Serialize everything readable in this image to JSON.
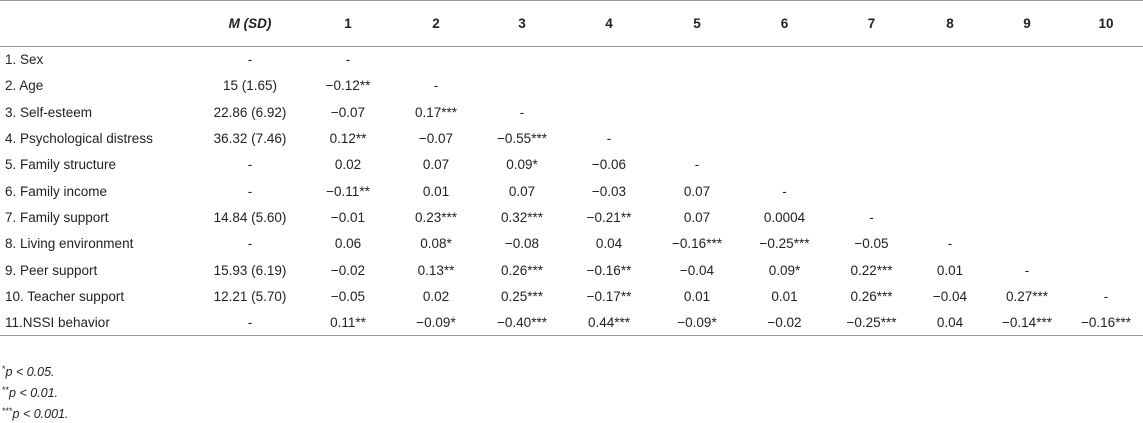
{
  "table": {
    "headers": [
      "",
      "M (SD)",
      "1",
      "2",
      "3",
      "4",
      "5",
      "6",
      "7",
      "8",
      "9",
      "10"
    ],
    "rows": [
      {
        "label": "1. Sex",
        "msd": "-",
        "cells": [
          "-",
          "",
          "",
          "",
          "",
          "",
          "",
          "",
          "",
          ""
        ]
      },
      {
        "label": "2. Age",
        "msd": "15 (1.65)",
        "cells": [
          "−0.12**",
          "-",
          "",
          "",
          "",
          "",
          "",
          "",
          "",
          ""
        ]
      },
      {
        "label": "3. Self-esteem",
        "msd": "22.86 (6.92)",
        "cells": [
          "−0.07",
          "0.17***",
          "-",
          "",
          "",
          "",
          "",
          "",
          "",
          ""
        ]
      },
      {
        "label": "4. Psychological distress",
        "msd": "36.32 (7.46)",
        "cells": [
          "0.12**",
          "−0.07",
          "−0.55***",
          "-",
          "",
          "",
          "",
          "",
          "",
          ""
        ]
      },
      {
        "label": "5. Family structure",
        "msd": "-",
        "cells": [
          "0.02",
          "0.07",
          "0.09*",
          "−0.06",
          "-",
          "",
          "",
          "",
          "",
          ""
        ]
      },
      {
        "label": "6. Family income",
        "msd": "-",
        "cells": [
          "−0.11**",
          "0.01",
          "0.07",
          "−0.03",
          "0.07",
          "-",
          "",
          "",
          "",
          ""
        ]
      },
      {
        "label": "7. Family support",
        "msd": "14.84 (5.60)",
        "cells": [
          "−0.01",
          "0.23***",
          "0.32***",
          "−0.21**",
          "0.07",
          "0.0004",
          "-",
          "",
          "",
          ""
        ]
      },
      {
        "label": "8. Living environment",
        "msd": "-",
        "cells": [
          "0.06",
          "0.08*",
          "−0.08",
          "0.04",
          "−0.16***",
          "−0.25***",
          "−0.05",
          "-",
          "",
          ""
        ]
      },
      {
        "label": "9. Peer support",
        "msd": "15.93 (6.19)",
        "cells": [
          "−0.02",
          "0.13**",
          "0.26***",
          "−0.16**",
          "−0.04",
          "0.09*",
          "0.22***",
          "0.01",
          "-",
          ""
        ]
      },
      {
        "label": "10. Teacher support",
        "msd": "12.21 (5.70)",
        "cells": [
          "−0.05",
          "0.02",
          "0.25***",
          "−0.17**",
          "0.01",
          "0.01",
          "0.26***",
          "−0.04",
          "0.27***",
          "-"
        ]
      },
      {
        "label": "11.NSSI behavior",
        "msd": "-",
        "cells": [
          "0.11**",
          "−0.09*",
          "−0.40***",
          "0.44***",
          "−0.09*",
          "−0.02",
          "−0.25***",
          "0.04",
          "−0.14***",
          "−0.16***"
        ]
      }
    ]
  },
  "notes": [
    {
      "stars": "*",
      "text": "p < 0.05."
    },
    {
      "stars": "**",
      "text": "p < 0.01."
    },
    {
      "stars": "***",
      "text": "p < 0.001."
    }
  ],
  "colors": {
    "rule": "#9a9a9a",
    "text": "#222222"
  }
}
